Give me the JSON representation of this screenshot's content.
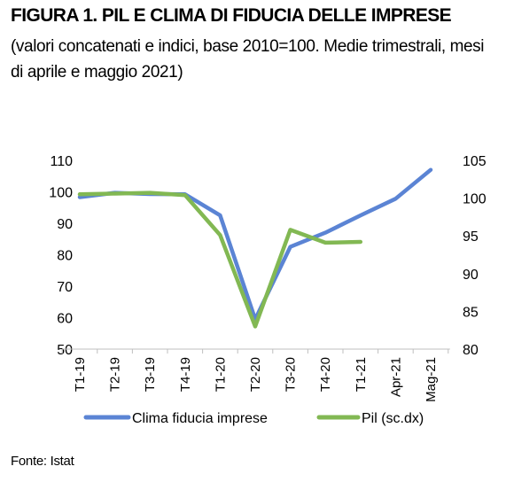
{
  "title": "FIGURA 1. PIL E CLIMA DI FIDUCIA DELLE IMPRESE",
  "subtitle": "(valori concatenati e indici, base 2010=100. Medie trimestrali, mesi di aprile e maggio 2021)",
  "source": "Fonte: Istat",
  "chart_data": {
    "type": "line",
    "categories": [
      "T1-19",
      "T2-19",
      "T3-19",
      "T4-19",
      "T1-20",
      "T2-20",
      "T3-20",
      "T4-20",
      "T1-21",
      "Apr-21",
      "Mag-21"
    ],
    "y_left": {
      "range": [
        50,
        110
      ],
      "ticks": [
        "110",
        "100",
        "90",
        "80",
        "70",
        "60",
        "50"
      ]
    },
    "y_right": {
      "range": [
        80,
        105
      ],
      "ticks": [
        "105",
        "100",
        "95",
        "90",
        "85",
        "80"
      ]
    },
    "series": [
      {
        "name": "Clima fiducia imprese",
        "axis": "left",
        "color": "#5b84d4",
        "values": [
          98.3,
          99.7,
          99.3,
          99.2,
          92.5,
          59.5,
          82.5,
          87.0,
          92.5,
          97.8,
          107.0
        ]
      },
      {
        "name": "Pil (sc.dx)",
        "axis": "right",
        "color": "#82b853",
        "values": [
          100.5,
          100.6,
          100.7,
          100.4,
          95.1,
          83.0,
          95.8,
          94.1,
          94.2,
          null,
          null
        ]
      }
    ],
    "legend_position": "bottom",
    "grid": false
  }
}
